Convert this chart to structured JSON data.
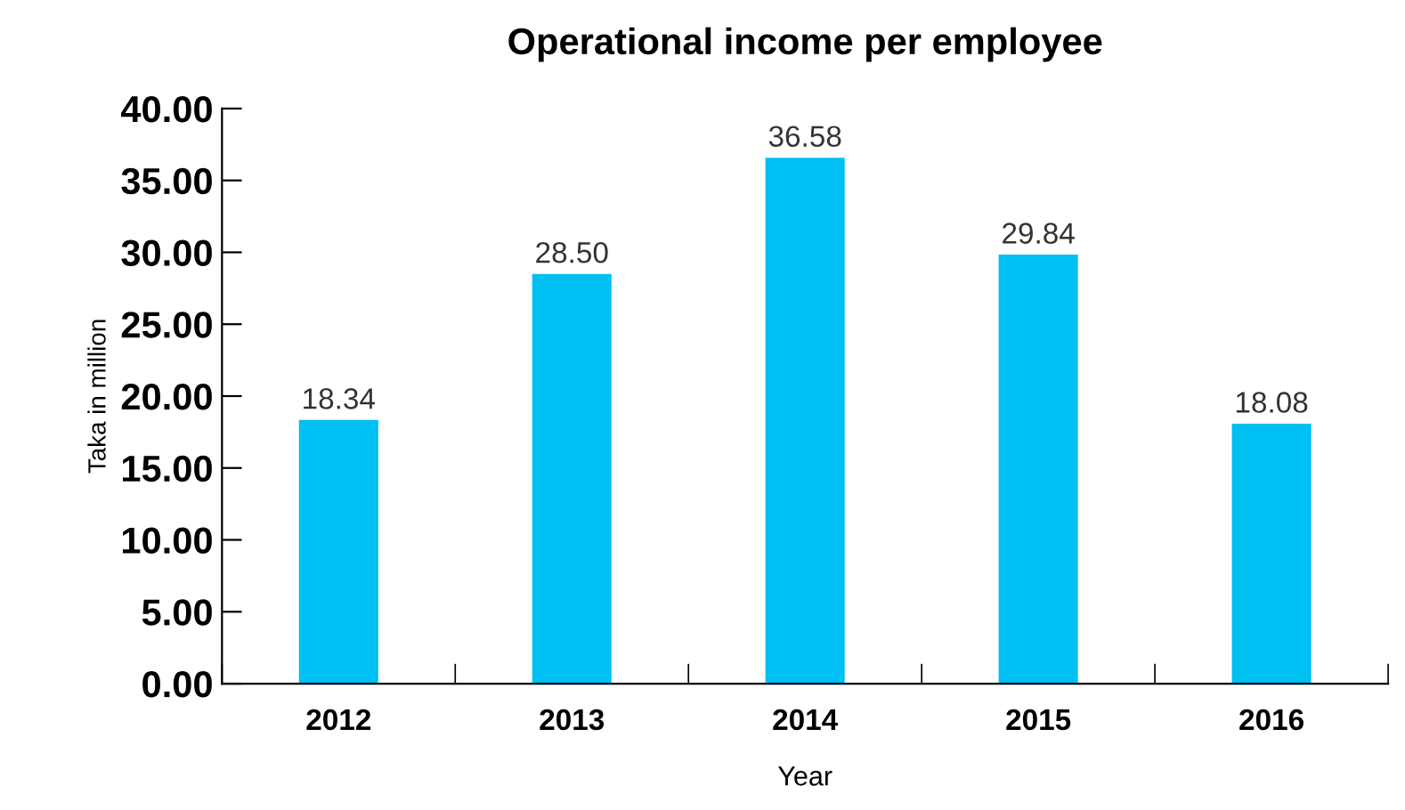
{
  "chart_data": {
    "type": "bar",
    "title": "Operational income per employee",
    "xlabel": "Year",
    "ylabel": "Taka in million",
    "categories": [
      "2012",
      "2013",
      "2014",
      "2015",
      "2016"
    ],
    "values": [
      18.34,
      28.5,
      36.58,
      29.84,
      18.08
    ],
    "value_labels": [
      "18.34",
      "28.50",
      "36.58",
      "29.84",
      "18.08"
    ],
    "color": "#00bff3",
    "ylim": [
      0,
      40
    ],
    "yticks": [
      {
        "value": 0,
        "label": "0.00"
      },
      {
        "value": 5,
        "label": "5.00"
      },
      {
        "value": 10,
        "label": "10.00"
      },
      {
        "value": 15,
        "label": "15.00"
      },
      {
        "value": 20,
        "label": "20.00"
      },
      {
        "value": 25,
        "label": "25.00"
      },
      {
        "value": 30,
        "label": "30.00"
      },
      {
        "value": 35,
        "label": "35.00"
      },
      {
        "value": 40,
        "label": "40.00"
      }
    ],
    "grid": false,
    "legend": false
  }
}
